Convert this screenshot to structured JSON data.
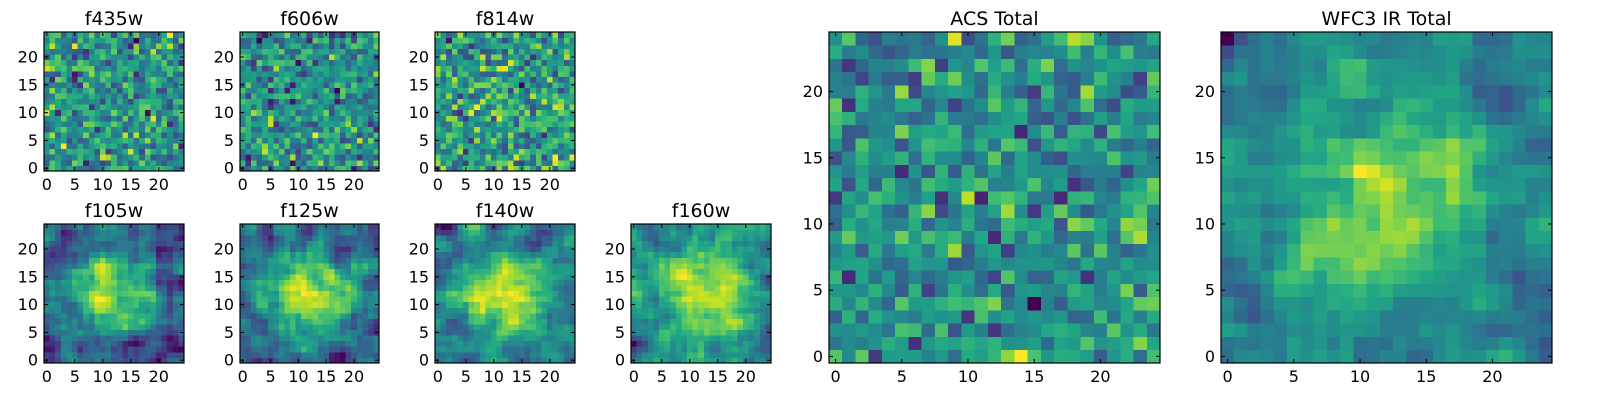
{
  "figure": {
    "colormap": "viridis",
    "colors": {
      "low": "#440154",
      "mid": "#21918c",
      "high": "#fde725",
      "frame": "#000000",
      "background": "#ffffff"
    }
  },
  "chart_data": [
    {
      "type": "heatmap",
      "title": "f435w",
      "xlim": [
        -0.5,
        24.5
      ],
      "ylim": [
        -0.5,
        24.5
      ],
      "xticks": [
        0,
        5,
        10,
        15,
        20
      ],
      "yticks": [
        0,
        5,
        10,
        15,
        20
      ],
      "grid_size": 25,
      "structure": "noise",
      "seed": 11
    },
    {
      "type": "heatmap",
      "title": "f606w",
      "xlim": [
        -0.5,
        24.5
      ],
      "ylim": [
        -0.5,
        24.5
      ],
      "xticks": [
        0,
        5,
        10,
        15,
        20
      ],
      "yticks": [
        0,
        5,
        10,
        15,
        20
      ],
      "grid_size": 25,
      "structure": "noise",
      "seed": 23
    },
    {
      "type": "heatmap",
      "title": "f814w",
      "xlim": [
        -0.5,
        24.5
      ],
      "ylim": [
        -0.5,
        24.5
      ],
      "xticks": [
        0,
        5,
        10,
        15,
        20
      ],
      "yticks": [
        0,
        5,
        10,
        15,
        20
      ],
      "grid_size": 25,
      "structure": "noise",
      "seed": 37
    },
    {
      "type": "heatmap",
      "title": "f105w",
      "xlim": [
        -0.5,
        24.5
      ],
      "ylim": [
        -0.5,
        24.5
      ],
      "xticks": [
        0,
        5,
        10,
        15,
        20
      ],
      "yticks": [
        0,
        5,
        10,
        15,
        20
      ],
      "grid_size": 25,
      "structure": "blob",
      "seed": 41
    },
    {
      "type": "heatmap",
      "title": "f125w",
      "xlim": [
        -0.5,
        24.5
      ],
      "ylim": [
        -0.5,
        24.5
      ],
      "xticks": [
        0,
        5,
        10,
        15,
        20
      ],
      "yticks": [
        0,
        5,
        10,
        15,
        20
      ],
      "grid_size": 25,
      "structure": "blob",
      "seed": 53
    },
    {
      "type": "heatmap",
      "title": "f140w",
      "xlim": [
        -0.5,
        24.5
      ],
      "ylim": [
        -0.5,
        24.5
      ],
      "xticks": [
        0,
        5,
        10,
        15,
        20
      ],
      "yticks": [
        0,
        5,
        10,
        15,
        20
      ],
      "grid_size": 25,
      "structure": "blob",
      "seed": 67
    },
    {
      "type": "heatmap",
      "title": "f160w",
      "xlim": [
        -0.5,
        24.5
      ],
      "ylim": [
        -0.5,
        24.5
      ],
      "xticks": [
        0,
        5,
        10,
        15,
        20
      ],
      "yticks": [
        0,
        5,
        10,
        15,
        20
      ],
      "grid_size": 25,
      "structure": "blob",
      "seed": 79
    },
    {
      "type": "heatmap",
      "title": "ACS Total",
      "xlim": [
        -0.5,
        24.5
      ],
      "ylim": [
        -0.5,
        24.5
      ],
      "xticks": [
        0,
        5,
        10,
        15,
        20
      ],
      "yticks": [
        0,
        5,
        10,
        15,
        20
      ],
      "grid_size": 25,
      "structure": "noise",
      "seed": 97
    },
    {
      "type": "heatmap",
      "title": "WFC3 IR Total",
      "xlim": [
        -0.5,
        24.5
      ],
      "ylim": [
        -0.5,
        24.5
      ],
      "xticks": [
        0,
        5,
        10,
        15,
        20
      ],
      "yticks": [
        0,
        5,
        10,
        15,
        20
      ],
      "grid_size": 25,
      "structure": "blob",
      "seed": 101
    }
  ]
}
